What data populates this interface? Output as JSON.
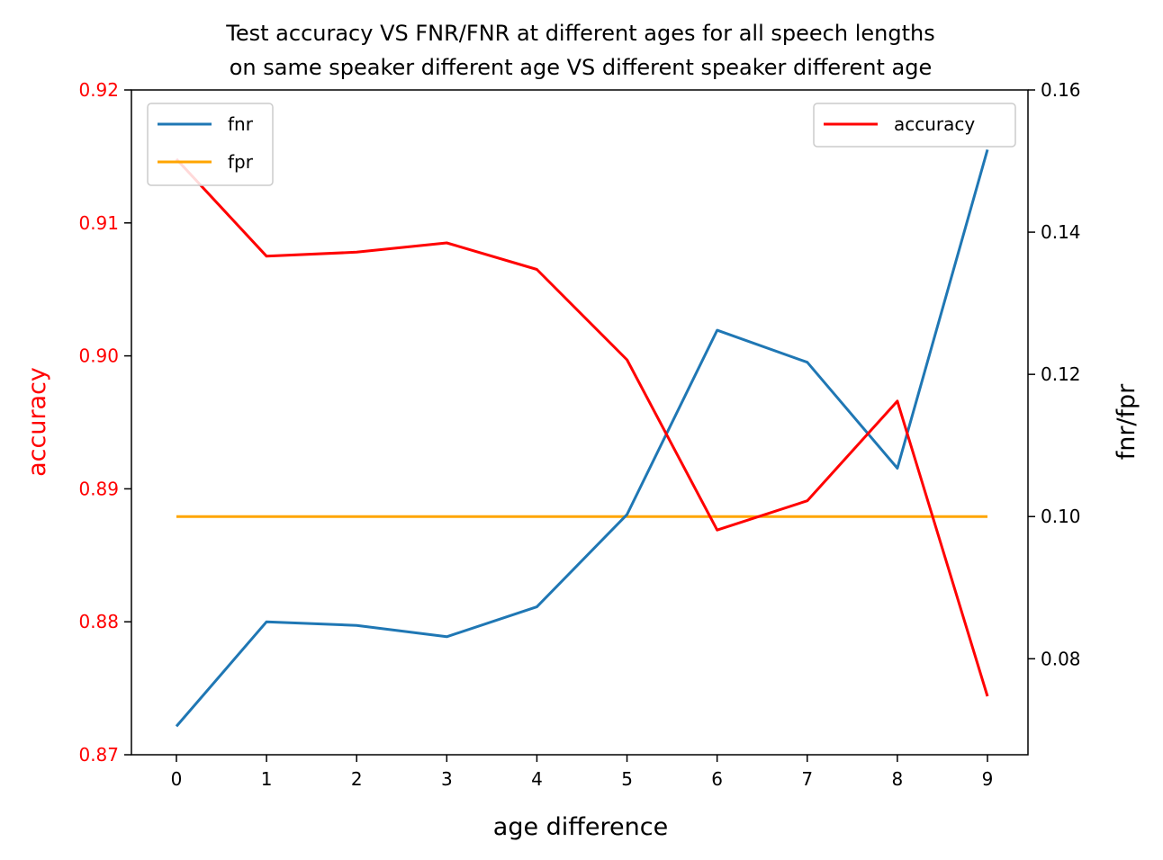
{
  "chart_data": {
    "type": "line",
    "title": [
      "Test accuracy VS FNR/FNR at different ages for all speech lengths",
      "on same speaker different age VS different speaker different age"
    ],
    "xlabel": "age difference",
    "ylabel_left": "accuracy",
    "ylabel_right": "fnr/fpr",
    "x": [
      0,
      1,
      2,
      3,
      4,
      5,
      6,
      7,
      8,
      9
    ],
    "xticks": [
      "0",
      "1",
      "2",
      "3",
      "4",
      "5",
      "6",
      "7",
      "8",
      "9"
    ],
    "left_axis": {
      "ylim": [
        0.87,
        0.92
      ],
      "ticks": [
        0.87,
        0.88,
        0.89,
        0.9,
        0.91,
        0.92
      ],
      "tick_labels": [
        "0.87",
        "0.88",
        "0.89",
        "0.90",
        "0.91",
        "0.92"
      ],
      "color": "#ff0000"
    },
    "right_axis": {
      "ylim": [
        0.0665,
        0.16
      ],
      "ticks": [
        0.08,
        0.1,
        0.12,
        0.14,
        0.16
      ],
      "tick_labels": [
        "0.08",
        "0.10",
        "0.12",
        "0.14",
        "0.16"
      ],
      "color": "#000000"
    },
    "series": [
      {
        "name": "accuracy",
        "axis": "left",
        "color": "#ff0000",
        "values": [
          0.9148,
          0.9075,
          0.9078,
          0.9085,
          0.9065,
          0.8997,
          0.8869,
          0.8891,
          0.8966,
          0.8744
        ]
      },
      {
        "name": "fnr",
        "axis": "right",
        "color": "#1f77b4",
        "values": [
          0.0705,
          0.0852,
          0.0847,
          0.0831,
          0.0873,
          0.1003,
          0.1262,
          0.1217,
          0.1068,
          0.1516
        ]
      },
      {
        "name": "fpr",
        "axis": "right",
        "color": "#ffa500",
        "values": [
          0.1,
          0.1,
          0.1,
          0.1,
          0.1,
          0.1,
          0.1,
          0.1,
          0.1,
          0.1
        ]
      }
    ],
    "legend_left": {
      "placement": "upper-left",
      "entries": [
        "fnr",
        "fpr"
      ]
    },
    "legend_right": {
      "placement": "upper-right",
      "entries": [
        "accuracy"
      ]
    },
    "grid": false
  }
}
